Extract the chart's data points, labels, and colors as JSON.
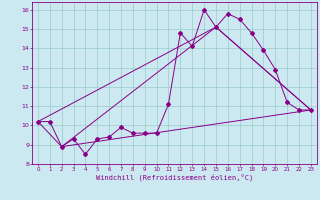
{
  "xlabel": "Windchill (Refroidissement éolien,°C)",
  "xlim": [
    -0.5,
    23.5
  ],
  "ylim": [
    8,
    16.4
  ],
  "xticks": [
    0,
    1,
    2,
    3,
    4,
    5,
    6,
    7,
    8,
    9,
    10,
    11,
    12,
    13,
    14,
    15,
    16,
    17,
    18,
    19,
    20,
    21,
    22,
    23
  ],
  "yticks": [
    8,
    9,
    10,
    11,
    12,
    13,
    14,
    15,
    16
  ],
  "bg_color": "#cce8f0",
  "line_color": "#880088",
  "grid_color": "#99cccc",
  "line1_x": [
    0,
    1,
    2,
    3,
    4,
    5,
    6,
    7,
    8,
    9,
    10,
    11,
    12,
    13,
    14,
    15,
    16,
    17,
    18,
    19,
    20,
    21,
    22,
    23
  ],
  "line1_y": [
    10.2,
    10.2,
    8.9,
    9.3,
    8.5,
    9.3,
    9.4,
    9.9,
    9.6,
    9.6,
    9.6,
    11.1,
    14.8,
    14.1,
    16.0,
    15.1,
    15.8,
    15.5,
    14.8,
    13.9,
    12.9,
    11.2,
    10.8,
    10.8
  ],
  "line2_x": [
    0,
    2,
    23
  ],
  "line2_y": [
    10.2,
    8.9,
    10.8
  ],
  "line3_x": [
    0,
    15,
    23
  ],
  "line3_y": [
    10.2,
    15.1,
    10.8
  ],
  "line4_x": [
    2,
    15,
    23
  ],
  "line4_y": [
    8.9,
    15.1,
    10.8
  ]
}
